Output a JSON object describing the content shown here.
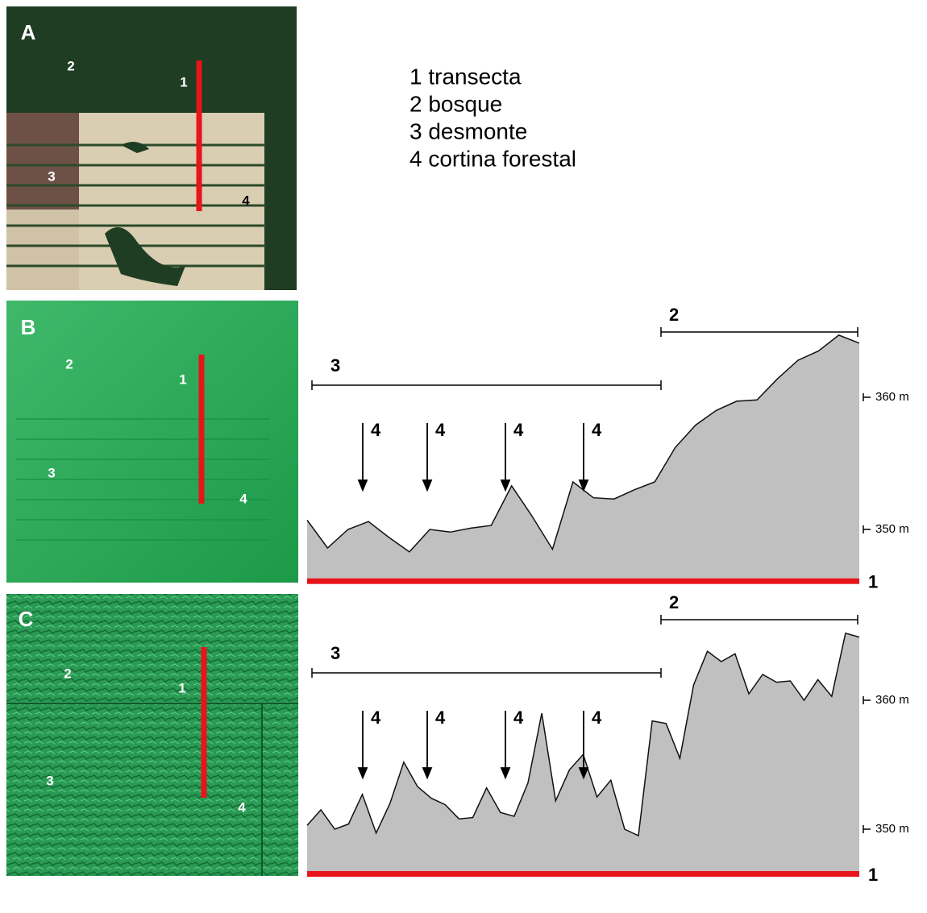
{
  "legend": {
    "items": [
      "1 transecta",
      "2 bosque",
      "3 desmonte",
      "4 cortina forestal"
    ]
  },
  "panels": [
    {
      "label": "A",
      "map_labels": [
        "1",
        "2",
        "3",
        "4"
      ]
    },
    {
      "label": "B",
      "map_labels": [
        "1",
        "2",
        "3",
        "4"
      ]
    },
    {
      "label": "C",
      "map_labels": [
        "1",
        "2",
        "3",
        "4"
      ]
    }
  ],
  "chart_data": [
    {
      "type": "area",
      "color": "#c0c0c0",
      "values": [
        350.7,
        348.6,
        350.0,
        350.6,
        349.4,
        348.3,
        350.0,
        349.8,
        350.1,
        350.3,
        353.3,
        351.0,
        348.5,
        353.6,
        352.4,
        352.3,
        353.0,
        353.6,
        356.2,
        357.9,
        359.0,
        359.7,
        359.8,
        361.4,
        362.8,
        363.5,
        364.7,
        364.1
      ],
      "ylim": [
        346.3,
        366.3
      ],
      "yticks": [
        {
          "value": 350,
          "label": "350 m"
        },
        {
          "value": 360,
          "label": "360 m"
        }
      ],
      "annotations": [
        "2",
        "3",
        "4",
        "4",
        "4",
        "4",
        "1"
      ]
    },
    {
      "type": "area",
      "color": "#c0c0c0",
      "values": [
        350.3,
        351.5,
        350.0,
        350.4,
        352.7,
        349.7,
        352.0,
        355.2,
        353.3,
        352.4,
        351.9,
        350.8,
        350.9,
        353.2,
        351.3,
        351.0,
        353.6,
        359.0,
        352.2,
        354.6,
        355.8,
        352.5,
        353.8,
        350.0,
        349.5,
        358.4,
        358.2,
        355.5,
        361.2,
        363.8,
        363.0,
        363.6,
        360.5,
        362.0,
        361.4,
        361.5,
        360.0,
        361.6,
        360.3,
        365.2,
        364.9
      ],
      "ylim": [
        346.75,
        366.75
      ],
      "yticks": [
        {
          "value": 350,
          "label": "350 m"
        },
        {
          "value": 360,
          "label": "360 m"
        }
      ],
      "annotations": [
        "2",
        "3",
        "4",
        "4",
        "4",
        "4",
        "1"
      ]
    }
  ]
}
